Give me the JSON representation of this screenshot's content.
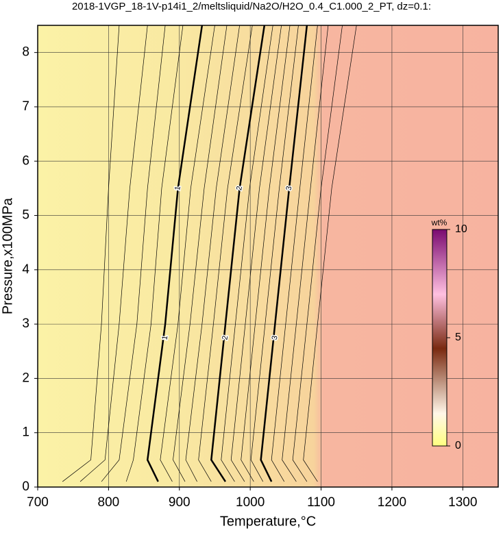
{
  "chart_data": {
    "type": "contour",
    "title": "2018-1VGP_18-1V-p14i1_2/meltsliquid/Na2O/H2O_0.4_C1.000_2_PT, dz=0.1:",
    "x_label": "Temperature,°C",
    "y_label": "Pressure,x100MPa",
    "xlim": [
      700,
      1350
    ],
    "ylim": [
      0,
      8.5
    ],
    "xticks": [
      700,
      800,
      900,
      1000,
      1100,
      1200,
      1300
    ],
    "yticks": [
      0,
      1,
      2,
      3,
      4,
      5,
      6,
      7,
      8
    ],
    "grid": true,
    "y": [
      0.1,
      0.5,
      3,
      5.5,
      8.5
    ],
    "contours": [
      {
        "level": 0.2,
        "x": [
          735,
          775,
          790,
          800,
          815
        ]
      },
      {
        "level": 0.4,
        "x": [
          760,
          795,
          815,
          830,
          855
        ]
      },
      {
        "level": 0.6,
        "x": [
          790,
          815,
          840,
          855,
          880
        ]
      },
      {
        "level": 0.8,
        "x": [
          825,
          835,
          860,
          875,
          905
        ]
      },
      {
        "level": 1,
        "x": [
          870,
          855,
          880,
          898,
          932
        ]
      },
      {
        "level": 1.2,
        "x": [
          890,
          873,
          898,
          916,
          950
        ]
      },
      {
        "level": 1.4,
        "x": [
          908,
          891,
          915,
          935,
          967
        ]
      },
      {
        "level": 1.6,
        "x": [
          925,
          909,
          932,
          952,
          985
        ]
      },
      {
        "level": 1.8,
        "x": [
          945,
          927,
          948,
          968,
          1003
        ]
      },
      {
        "level": 2,
        "x": [
          965,
          945,
          965,
          985,
          1020
        ]
      },
      {
        "level": 2.2,
        "x": [
          978,
          959,
          979,
          999,
          1032
        ]
      },
      {
        "level": 2.4,
        "x": [
          992,
          973,
          993,
          1013,
          1044
        ]
      },
      {
        "level": 2.6,
        "x": [
          1005,
          987,
          1007,
          1027,
          1056
        ]
      },
      {
        "level": 2.8,
        "x": [
          1018,
          1001,
          1021,
          1041,
          1068
        ]
      },
      {
        "level": 3,
        "x": [
          1030,
          1015,
          1035,
          1055,
          1080
        ]
      },
      {
        "level": 3.2,
        "x": [
          1048,
          1030,
          1050,
          1070,
          1095
        ]
      },
      {
        "level": 3.4,
        "x": [
          1065,
          1045,
          1065,
          1085,
          1110
        ]
      },
      {
        "level": 3.6,
        "x": [
          1080,
          1060,
          1080,
          1100,
          1130
        ]
      },
      {
        "level": 3.8,
        "x": [
          1095,
          1075,
          1095,
          1115,
          1150
        ]
      }
    ],
    "colorbar": {
      "label": "wt%",
      "lim": [
        0,
        10
      ],
      "ticks": [
        0,
        5,
        10
      ]
    }
  }
}
